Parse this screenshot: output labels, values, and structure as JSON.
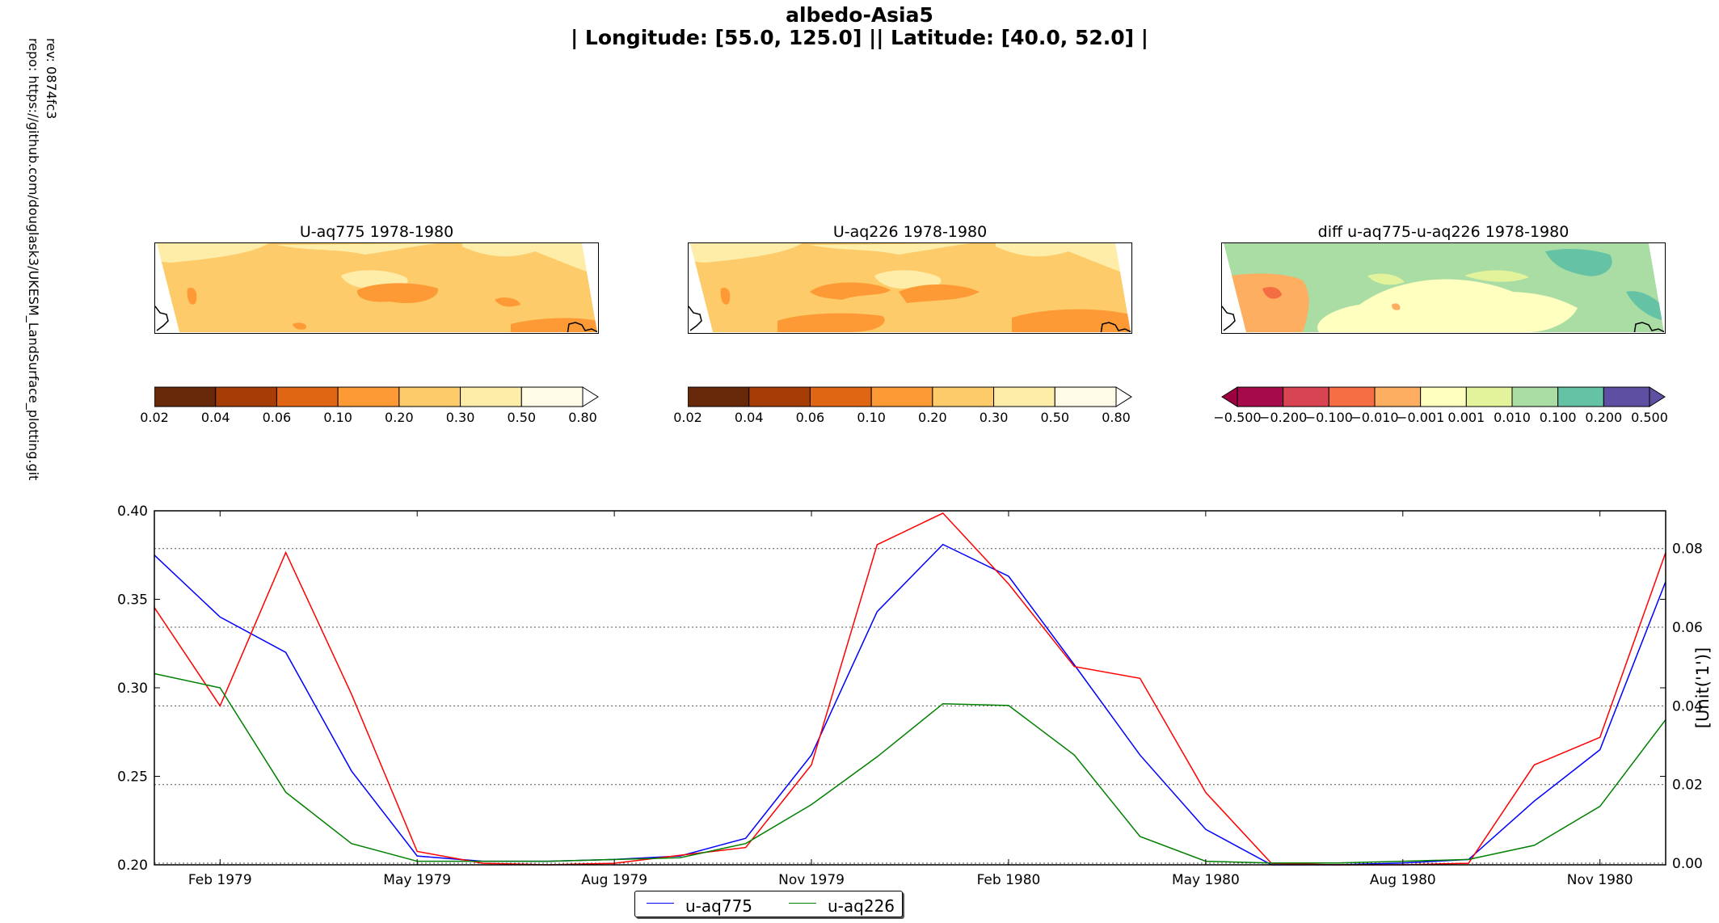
{
  "figure": {
    "title": "albedo-Asia5",
    "subtitle": "| Longitude: [55.0, 125.0] || Latitude: [40.0, 52.0] |",
    "rev": "rev:  0874fc3",
    "repo": "repo: https://github.com/douglask3/UKESM_LandSurface_plotting.git"
  },
  "maps": [
    {
      "title": "U-aq775 1978-1980",
      "colorbar": "abs"
    },
    {
      "title": "U-aq226 1978-1980",
      "colorbar": "abs"
    },
    {
      "title": "diff u-aq775-u-aq226 1978-1980",
      "colorbar": "diff"
    }
  ],
  "colorbars": {
    "abs": {
      "ticks": [
        "0.02",
        "0.04",
        "0.06",
        "0.10",
        "0.20",
        "0.30",
        "0.50",
        "0.80"
      ],
      "colors": [
        "#67290a",
        "#a63c06",
        "#e06614",
        "#fd9a36",
        "#fdcb69",
        "#feeda8",
        "#fffbe6"
      ],
      "extend": "max",
      "extend_color": "#ffffff"
    },
    "diff": {
      "ticks": [
        "−0.500",
        "−0.200",
        "−0.100",
        "−0.010",
        "−0.001",
        "0.001",
        "0.010",
        "0.100",
        "0.200",
        "0.500"
      ],
      "colors": [
        "#a50b4a",
        "#d84451",
        "#f46d43",
        "#fdae61",
        "#ffffbf",
        "#e2f39b",
        "#aadda4",
        "#66c2a5",
        "#5e4fa2"
      ],
      "extend": "both",
      "extend_low_color": "#9e0142",
      "extend_high_color": "#5e4fa2"
    }
  },
  "map_fills": {
    "abs_light": "#feeda8",
    "abs_mid": "#fdcb69",
    "abs_dark": "#fd9a36",
    "diff_green": "#aadda4",
    "diff_yellow": "#ffffbf",
    "diff_lime": "#e2f39b",
    "diff_orange": "#fdae61",
    "diff_red": "#f46d43",
    "diff_teal": "#66c2a5"
  },
  "chart_data": {
    "type": "line",
    "x": [
      "Jan 1979",
      "Feb 1979",
      "Mar 1979",
      "Apr 1979",
      "May 1979",
      "Jun 1979",
      "Jul 1979",
      "Aug 1979",
      "Sep 1979",
      "Oct 1979",
      "Nov 1979",
      "Dec 1979",
      "Jan 1980",
      "Feb 1980",
      "Mar 1980",
      "Apr 1980",
      "May 1980",
      "Jun 1980",
      "Jul 1980",
      "Aug 1980",
      "Sep 1980",
      "Oct 1980",
      "Nov 1980",
      "Dec 1980"
    ],
    "x_tick_labels": [
      "Feb 1979",
      "May 1979",
      "Aug 1979",
      "Nov 1979",
      "Feb 1980",
      "May 1980",
      "Aug 1980",
      "Nov 1980"
    ],
    "x_tick_months": [
      "Feb 1979",
      "May 1979",
      "Aug 1979",
      "Nov 1979",
      "Feb 1980",
      "May 1980",
      "Aug 1980",
      "Nov 1980"
    ],
    "ylim_left": [
      0.2,
      0.4
    ],
    "yticks_left": [
      "0.20",
      "0.25",
      "0.30",
      "0.35",
      "0.40"
    ],
    "ylim_right": [
      -0.0004,
      0.0896
    ],
    "yticks_right": [
      "0.00",
      "0.02",
      "0.04",
      "0.06",
      "0.08"
    ],
    "ylabel_right": "[Unit('1')]",
    "grid": "horizontal-dotted",
    "legend_position": "bottom-center",
    "series": [
      {
        "name": "u-aq775",
        "axis": "left",
        "color": "#0000ff",
        "values": [
          0.375,
          0.34,
          0.32,
          0.253,
          0.205,
          0.202,
          0.202,
          0.203,
          0.205,
          0.215,
          0.262,
          0.343,
          0.381,
          0.363,
          0.313,
          0.262,
          0.22,
          0.2,
          0.2,
          0.201,
          0.203,
          0.236,
          0.265,
          0.36
        ]
      },
      {
        "name": "",
        "axis": "right",
        "color": "#ff0000",
        "values": [
          0.065,
          0.04,
          0.079,
          0.043,
          0.003,
          0.0,
          -0.0004,
          0.0,
          0.002,
          0.004,
          0.025,
          0.081,
          0.089,
          0.071,
          0.05,
          0.047,
          0.018,
          0.0,
          -0.0004,
          -0.0004,
          0.0,
          0.025,
          0.032,
          0.079
        ]
      },
      {
        "name": "u-aq226",
        "axis": "left",
        "color": "#008000",
        "values": [
          0.308,
          0.3,
          0.241,
          0.212,
          0.202,
          0.202,
          0.202,
          0.203,
          0.204,
          0.212,
          0.234,
          0.261,
          0.291,
          0.29,
          0.262,
          0.216,
          0.202,
          0.201,
          0.201,
          0.202,
          0.203,
          0.211,
          0.233,
          0.282
        ]
      }
    ]
  }
}
